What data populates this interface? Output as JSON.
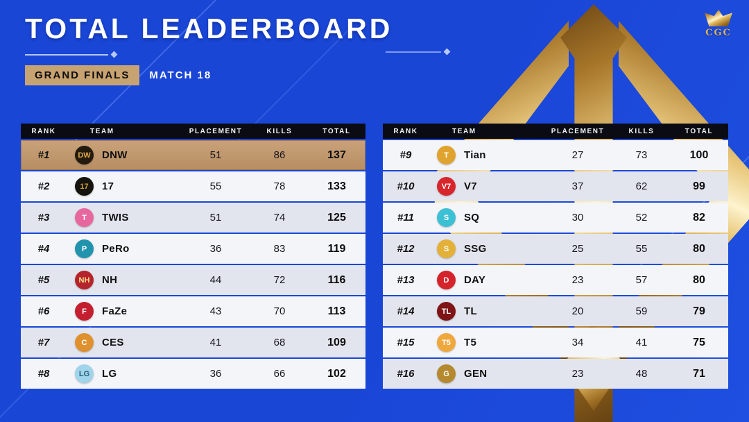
{
  "header": {
    "title": "TOTAL LEADERBOARD",
    "stage": "GRAND FINALS",
    "match": "MATCH 18",
    "brand": "CGC"
  },
  "table": {
    "columns": [
      "RANK",
      "TEAM",
      "PLACEMENT",
      "KILLS",
      "TOTAL"
    ]
  },
  "left_rows": [
    {
      "rank": "#1",
      "team": "DNW",
      "placement": "51",
      "kills": "86",
      "total": "137",
      "highlight": true,
      "logo": {
        "label": "DW",
        "bg": "#241b10",
        "fg": "#dca845"
      }
    },
    {
      "rank": "#2",
      "team": "17",
      "placement": "55",
      "kills": "78",
      "total": "133",
      "logo": {
        "label": "17",
        "bg": "#15130d",
        "fg": "#c9a23c"
      }
    },
    {
      "rank": "#3",
      "team": "TWIS",
      "placement": "51",
      "kills": "74",
      "total": "125",
      "logo": {
        "label": "T",
        "bg": "#e7679f",
        "fg": "#ffffff"
      }
    },
    {
      "rank": "#4",
      "team": "PeRo",
      "placement": "36",
      "kills": "83",
      "total": "119",
      "logo": {
        "label": "P",
        "bg": "#2193ad",
        "fg": "#ffffff"
      }
    },
    {
      "rank": "#5",
      "team": "NH",
      "placement": "44",
      "kills": "72",
      "total": "116",
      "logo": {
        "label": "NH",
        "bg": "#b5242c",
        "fg": "#ffe08a"
      }
    },
    {
      "rank": "#6",
      "team": "FaZe",
      "placement": "43",
      "kills": "70",
      "total": "113",
      "logo": {
        "label": "F",
        "bg": "#c41f30",
        "fg": "#ffffff"
      }
    },
    {
      "rank": "#7",
      "team": "CES",
      "placement": "41",
      "kills": "68",
      "total": "109",
      "logo": {
        "label": "C",
        "bg": "#e0912f",
        "fg": "#ffffff"
      }
    },
    {
      "rank": "#8",
      "team": "LG",
      "placement": "36",
      "kills": "66",
      "total": "102",
      "logo": {
        "label": "LG",
        "bg": "#9fd4ea",
        "fg": "#2a5b77"
      }
    }
  ],
  "right_rows": [
    {
      "rank": "#9",
      "team": "Tian",
      "placement": "27",
      "kills": "73",
      "total": "100",
      "logo": {
        "label": "T",
        "bg": "#e0a32e",
        "fg": "#ffffff"
      }
    },
    {
      "rank": "#10",
      "team": "V7",
      "placement": "37",
      "kills": "62",
      "total": "99",
      "logo": {
        "label": "V7",
        "bg": "#d7262c",
        "fg": "#ffffff"
      }
    },
    {
      "rank": "#11",
      "team": "SQ",
      "placement": "30",
      "kills": "52",
      "total": "82",
      "logo": {
        "label": "S",
        "bg": "#3cc0d4",
        "fg": "#ffffff"
      }
    },
    {
      "rank": "#12",
      "team": "SSG",
      "placement": "25",
      "kills": "55",
      "total": "80",
      "logo": {
        "label": "S",
        "bg": "#e3b03a",
        "fg": "#ffffff"
      }
    },
    {
      "rank": "#13",
      "team": "DAY",
      "placement": "23",
      "kills": "57",
      "total": "80",
      "logo": {
        "label": "D",
        "bg": "#d4232a",
        "fg": "#ffffff"
      }
    },
    {
      "rank": "#14",
      "team": "TL",
      "placement": "20",
      "kills": "59",
      "total": "79",
      "logo": {
        "label": "TL",
        "bg": "#7e1416",
        "fg": "#ffffff"
      }
    },
    {
      "rank": "#15",
      "team": "T5",
      "placement": "34",
      "kills": "41",
      "total": "75",
      "logo": {
        "label": "T5",
        "bg": "#f0a73c",
        "fg": "#ffffff"
      }
    },
    {
      "rank": "#16",
      "team": "GEN",
      "placement": "23",
      "kills": "48",
      "total": "71",
      "logo": {
        "label": "G",
        "bg": "#b5892f",
        "fg": "#ffffff"
      }
    }
  ],
  "colors": {
    "background": "#1a46d6",
    "header_row": "#0b0b13",
    "highlight_row": "#c09a72",
    "badge": "#c8a372",
    "gold": "#d9ae54"
  }
}
